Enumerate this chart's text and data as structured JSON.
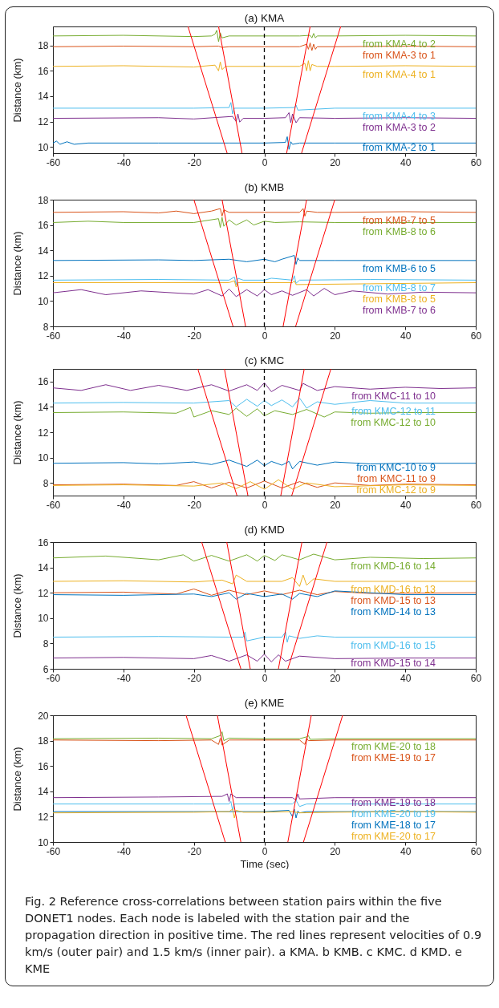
{
  "chart_data": [
    {
      "type": "line",
      "title": "(a) KMA",
      "ylabel": "Distance (km)",
      "xlim": [
        -60,
        60
      ],
      "xticks": [
        -60,
        -40,
        -20,
        0,
        20,
        40,
        60
      ],
      "ylim": [
        9.5,
        19.5
      ],
      "yticks": [
        10,
        12,
        14,
        16,
        18
      ],
      "ref_lines": [
        {
          "axis": "x",
          "value": 0,
          "line_style": "dashed",
          "color": "#000000"
        }
      ],
      "series": [
        {
          "name": "from KMA-4 to 2",
          "color": "#77ac30",
          "x": [
            -60,
            -40,
            -20,
            -15,
            -14,
            -13.5,
            -13,
            -12.5,
            -12,
            -10,
            0,
            10,
            13,
            13.5,
            14,
            14.5,
            15,
            20,
            40,
            60
          ],
          "values": [
            18.75,
            18.8,
            18.7,
            18.75,
            18.9,
            19.2,
            18.3,
            19.0,
            18.6,
            18.75,
            18.75,
            18.75,
            18.8,
            18.6,
            18.95,
            18.6,
            18.75,
            18.75,
            18.8,
            18.75
          ]
        },
        {
          "name": "from KMA-3 to 1",
          "color": "#d95319",
          "x": [
            -60,
            -40,
            -20,
            -13,
            -12,
            -10,
            0,
            10,
            12,
            12.5,
            13,
            13.5,
            14,
            14.5,
            15,
            20,
            40,
            60
          ],
          "values": [
            17.9,
            17.95,
            17.9,
            17.95,
            17.85,
            17.9,
            17.9,
            17.9,
            18.1,
            17.7,
            18.2,
            17.6,
            18.1,
            17.7,
            17.9,
            17.9,
            17.95,
            17.9
          ]
        },
        {
          "name": "from KMA-4 to 1",
          "color": "#edb120",
          "x": [
            -60,
            -40,
            -20,
            -14,
            -13,
            -12.5,
            -12,
            -11,
            0,
            10,
            11.5,
            12,
            12.5,
            13,
            13.5,
            15,
            20,
            40,
            60
          ],
          "values": [
            16.35,
            16.4,
            16.3,
            16.45,
            16.0,
            16.7,
            16.1,
            16.35,
            16.35,
            16.35,
            16.6,
            16.0,
            16.8,
            16.0,
            16.5,
            16.35,
            16.35,
            16.4,
            16.35
          ]
        },
        {
          "name": "from KMA-4 to 3",
          "color": "#4dbeee",
          "x": [
            -60,
            -20,
            -10,
            -9.5,
            -9,
            -8.5,
            0,
            8.5,
            9,
            9.5,
            20,
            60
          ],
          "values": [
            13.05,
            13.05,
            13.1,
            13.5,
            12.6,
            13.05,
            13.05,
            13.1,
            13.3,
            12.9,
            13.05,
            13.05
          ]
        },
        {
          "name": "from KMA-3 to 2",
          "color": "#7e2f8e",
          "x": [
            -60,
            -30,
            -20,
            -9,
            -8,
            -7.5,
            -7,
            -6,
            0,
            6,
            7,
            7.5,
            8,
            9,
            10,
            20,
            40,
            60
          ],
          "values": [
            12.25,
            12.3,
            12.2,
            12.4,
            12.0,
            12.6,
            11.95,
            12.25,
            12.25,
            12.3,
            12.7,
            11.9,
            12.6,
            11.9,
            12.3,
            12.25,
            12.3,
            12.25
          ]
        },
        {
          "name": "from KMA-2 to 1",
          "color": "#0072bd",
          "x": [
            -60,
            -59,
            -58,
            -56,
            -54,
            -50,
            -30,
            -10,
            0,
            6,
            6.5,
            7,
            7.5,
            8,
            10,
            20,
            40,
            60
          ],
          "values": [
            10.3,
            10.45,
            10.2,
            10.4,
            10.2,
            10.3,
            10.3,
            10.3,
            10.3,
            10.35,
            10.8,
            9.8,
            10.4,
            10.2,
            10.3,
            10.3,
            10.3,
            10.3
          ]
        },
        {
          "type": "line",
          "color": "#ff0000",
          "x": [
            -21.67,
            -10.56
          ],
          "values": [
            19.5,
            9.5
          ]
        },
        {
          "type": "line",
          "color": "#ff0000",
          "x": [
            -13,
            -6.33
          ],
          "values": [
            19.5,
            9.5
          ]
        },
        {
          "type": "line",
          "color": "#ff0000",
          "x": [
            6.33,
            13
          ],
          "values": [
            9.5,
            19.5
          ]
        },
        {
          "type": "line",
          "color": "#ff0000",
          "x": [
            10.56,
            21.67
          ],
          "values": [
            9.5,
            19.5
          ]
        }
      ]
    },
    {
      "type": "line",
      "title": "(b) KMB",
      "ylabel": "Distance (km)",
      "xlim": [
        -60,
        60
      ],
      "xticks": [
        -60,
        -40,
        -20,
        0,
        20,
        40,
        60
      ],
      "ylim": [
        8,
        18
      ],
      "yticks": [
        8,
        10,
        12,
        14,
        16,
        18
      ],
      "ref_lines": [
        {
          "axis": "x",
          "value": 0,
          "line_style": "dashed",
          "color": "#000000"
        }
      ],
      "series": [
        {
          "name": "from KMB-7 to 5",
          "color": "#d95319",
          "x": [
            -60,
            -40,
            -30,
            -25,
            -20,
            -15,
            -12.5,
            -12,
            -11.5,
            -10,
            0,
            10,
            11,
            11.5,
            12,
            15,
            20,
            40,
            60
          ],
          "values": [
            17.0,
            17.05,
            16.95,
            17.1,
            16.9,
            17.1,
            17.3,
            16.7,
            17.2,
            17.0,
            17.0,
            17.0,
            17.3,
            16.7,
            17.1,
            17.0,
            17.0,
            17.05,
            17.0
          ]
        },
        {
          "name": "from KMB-8 to 6",
          "color": "#77ac30",
          "x": [
            -60,
            -50,
            -40,
            -20,
            -13,
            -12.5,
            -12,
            -11.5,
            -10,
            -8,
            -5,
            -3,
            0,
            3,
            10,
            20,
            40,
            60
          ],
          "values": [
            16.2,
            16.3,
            16.2,
            16.2,
            16.5,
            15.8,
            16.6,
            15.9,
            16.4,
            16.0,
            16.4,
            16.0,
            16.3,
            16.2,
            16.25,
            16.2,
            16.2,
            16.2
          ]
        },
        {
          "name": "from KMB-6 to 5",
          "color": "#0072bd",
          "x": [
            -60,
            -30,
            -20,
            -10,
            -5,
            0,
            3,
            5,
            8.5,
            9,
            9.5,
            10,
            20,
            40,
            60
          ],
          "values": [
            13.2,
            13.25,
            13.2,
            13.3,
            13.1,
            13.3,
            13.1,
            13.3,
            13.6,
            12.9,
            13.4,
            13.2,
            13.2,
            13.2,
            13.2
          ]
        },
        {
          "name": "from KMB-8 to 7",
          "color": "#4dbeee",
          "x": [
            -60,
            -30,
            -10,
            -8.5,
            -8,
            -7.5,
            -6,
            0,
            2,
            8,
            8.5,
            9,
            10,
            30,
            60
          ],
          "values": [
            11.65,
            11.7,
            11.65,
            11.9,
            11.3,
            11.8,
            11.65,
            11.65,
            11.8,
            11.65,
            12.0,
            11.4,
            11.65,
            11.7,
            11.65
          ]
        },
        {
          "name": "from KMB-8 to 5",
          "color": "#edb120",
          "x": [
            -60,
            -10,
            -8.5,
            -8,
            -7.5,
            0,
            8,
            8.5,
            9,
            60
          ],
          "values": [
            11.45,
            11.45,
            11.6,
            11.1,
            11.45,
            11.45,
            11.45,
            11.6,
            11.3,
            11.45
          ]
        },
        {
          "name": "from KMB-7 to 6",
          "color": "#7e2f8e",
          "x": [
            -60,
            -52,
            -45,
            -35,
            -20,
            -16,
            -12,
            -10,
            -8,
            -5,
            -2,
            0,
            2,
            5,
            8,
            12,
            14,
            17,
            20,
            25,
            35,
            45,
            60
          ],
          "values": [
            10.65,
            10.9,
            10.5,
            10.8,
            10.55,
            10.9,
            10.4,
            10.95,
            10.35,
            10.9,
            10.4,
            10.9,
            10.5,
            10.8,
            10.45,
            10.9,
            10.4,
            11.0,
            10.5,
            10.8,
            10.55,
            10.7,
            10.65
          ]
        },
        {
          "type": "line",
          "color": "#ff0000",
          "x": [
            -20,
            -8.89
          ],
          "values": [
            18,
            8
          ]
        },
        {
          "type": "line",
          "color": "#ff0000",
          "x": [
            -12,
            -5.33
          ],
          "values": [
            18,
            8
          ]
        },
        {
          "type": "line",
          "color": "#ff0000",
          "x": [
            5.33,
            12
          ],
          "values": [
            8,
            18
          ]
        },
        {
          "type": "line",
          "color": "#ff0000",
          "x": [
            8.89,
            20
          ],
          "values": [
            8,
            18
          ]
        }
      ]
    },
    {
      "type": "line",
      "title": "(c) KMC",
      "ylabel": "Distance (km)",
      "xlim": [
        -60,
        60
      ],
      "xticks": [
        -60,
        -40,
        -20,
        0,
        20,
        40,
        60
      ],
      "ylim": [
        7,
        17
      ],
      "yticks": [
        8,
        10,
        12,
        14,
        16
      ],
      "ref_lines": [
        {
          "axis": "x",
          "value": 0,
          "line_style": "dashed",
          "color": "#000000"
        }
      ],
      "series": [
        {
          "name": "from KMC-11 to 10",
          "color": "#7e2f8e",
          "x": [
            -60,
            -52,
            -45,
            -38,
            -30,
            -22,
            -15,
            -10,
            -5,
            -2,
            0,
            2,
            5,
            10,
            11,
            15,
            20,
            30,
            40,
            50,
            60
          ],
          "values": [
            15.5,
            15.3,
            15.75,
            15.3,
            15.7,
            15.3,
            15.75,
            15.25,
            15.75,
            15.3,
            15.9,
            15.2,
            15.7,
            15.3,
            15.85,
            15.3,
            15.6,
            15.4,
            15.55,
            15.45,
            15.5
          ]
        },
        {
          "name": "from KMC-12 to 11",
          "color": "#4dbeee",
          "x": [
            -60,
            -40,
            -20,
            -10,
            -8,
            -5,
            -2,
            0,
            2,
            5,
            8,
            10,
            12,
            15,
            20,
            30,
            40,
            60
          ],
          "values": [
            14.3,
            14.35,
            14.3,
            14.5,
            14.0,
            14.6,
            14.05,
            14.5,
            14.1,
            14.55,
            14.0,
            14.7,
            13.9,
            14.4,
            14.2,
            14.5,
            14.3,
            14.3
          ]
        },
        {
          "name": "from KMC-12 to 10",
          "color": "#77ac30",
          "x": [
            -60,
            -40,
            -25,
            -21,
            -20,
            -15,
            -10,
            -8,
            -5,
            -2,
            0,
            3,
            8,
            12,
            17,
            20,
            30,
            40,
            60
          ],
          "values": [
            13.55,
            13.6,
            13.5,
            13.95,
            13.2,
            13.7,
            13.4,
            13.9,
            13.25,
            13.85,
            13.3,
            13.7,
            13.4,
            13.8,
            13.2,
            13.6,
            13.5,
            13.55,
            13.55
          ]
        },
        {
          "name": "from KMC-10 to 9",
          "color": "#0072bd",
          "x": [
            -60,
            -40,
            -30,
            -20,
            -15,
            -10,
            -5,
            -2,
            0,
            2,
            5,
            7,
            8,
            10,
            15,
            20,
            30,
            40,
            60
          ],
          "values": [
            9.55,
            9.6,
            9.5,
            9.65,
            9.45,
            9.8,
            9.3,
            9.8,
            9.35,
            9.7,
            9.4,
            9.7,
            9.1,
            9.7,
            9.4,
            9.65,
            9.5,
            9.55,
            9.55
          ]
        },
        {
          "name": "from KMC-11 to 9",
          "color": "#d95319",
          "x": [
            -60,
            -40,
            -25,
            -20,
            -15,
            -10,
            -5,
            0,
            5,
            10,
            15,
            20,
            30,
            40,
            60
          ],
          "values": [
            7.85,
            7.9,
            7.8,
            8.1,
            7.6,
            8.05,
            7.6,
            8.15,
            7.6,
            8.1,
            7.65,
            8.0,
            7.8,
            7.9,
            7.85
          ]
        },
        {
          "name": "from KMC-12 to 9",
          "color": "#edb120",
          "x": [
            -60,
            -40,
            -20,
            -12,
            -8,
            -4,
            0,
            4,
            8,
            12,
            20,
            40,
            60
          ],
          "values": [
            7.8,
            7.85,
            7.75,
            8.0,
            7.55,
            8.1,
            7.5,
            8.25,
            7.5,
            8.0,
            7.7,
            7.85,
            7.8
          ]
        },
        {
          "type": "line",
          "color": "#ff0000",
          "x": [
            -18.89,
            -7.78
          ],
          "values": [
            17,
            7
          ]
        },
        {
          "type": "line",
          "color": "#ff0000",
          "x": [
            -11.33,
            -4.67
          ],
          "values": [
            17,
            7
          ]
        },
        {
          "type": "line",
          "color": "#ff0000",
          "x": [
            4.67,
            11.33
          ],
          "values": [
            7,
            17
          ]
        },
        {
          "type": "line",
          "color": "#ff0000",
          "x": [
            7.78,
            18.89
          ],
          "values": [
            7,
            17
          ]
        }
      ]
    },
    {
      "type": "line",
      "title": "(d) KMD",
      "ylabel": "Distance (km)",
      "xlim": [
        -60,
        60
      ],
      "xticks": [
        -60,
        -40,
        -20,
        0,
        20,
        40,
        60
      ],
      "ylim": [
        6,
        16
      ],
      "yticks": [
        6,
        8,
        10,
        12,
        14,
        16
      ],
      "ref_lines": [
        {
          "axis": "x",
          "value": 0,
          "line_style": "dashed",
          "color": "#000000"
        }
      ],
      "series": [
        {
          "name": "from KMD-16 to 14",
          "color": "#77ac30",
          "x": [
            -60,
            -45,
            -30,
            -23,
            -20,
            -15,
            -10,
            -5,
            -2,
            0,
            3,
            5,
            10,
            14,
            20,
            30,
            45,
            60
          ],
          "values": [
            14.75,
            14.9,
            14.6,
            15.0,
            14.5,
            14.95,
            14.5,
            15.0,
            14.5,
            14.95,
            14.55,
            15.0,
            14.6,
            15.05,
            14.6,
            14.8,
            14.7,
            14.75
          ]
        },
        {
          "name": "from KMD-16 to 13",
          "color": "#edb120",
          "x": [
            -60,
            -40,
            -20,
            -12,
            -9,
            -8,
            -5,
            0,
            5,
            8,
            10,
            11,
            12,
            14,
            20,
            40,
            60
          ],
          "values": [
            12.9,
            12.95,
            12.85,
            13.0,
            12.7,
            13.4,
            12.9,
            12.9,
            12.9,
            13.2,
            12.5,
            13.4,
            12.6,
            13.1,
            12.9,
            12.9,
            12.9
          ]
        },
        {
          "name": "from KMD-15 to 13",
          "color": "#d95319",
          "x": [
            -60,
            -40,
            -25,
            -20,
            -15,
            -10,
            -5,
            0,
            5,
            10,
            15,
            20,
            30,
            60
          ],
          "values": [
            12.0,
            12.05,
            11.9,
            12.3,
            11.8,
            12.2,
            11.85,
            12.15,
            11.85,
            12.2,
            11.85,
            12.1,
            11.95,
            12.0
          ]
        },
        {
          "name": "from KMD-14 to 13",
          "color": "#0072bd",
          "x": [
            -60,
            -40,
            -20,
            -15,
            -10,
            -8,
            -5,
            0,
            5,
            8,
            10,
            15,
            20,
            40,
            60
          ],
          "values": [
            11.85,
            11.8,
            11.9,
            11.7,
            12.0,
            11.5,
            11.95,
            11.7,
            11.9,
            11.5,
            11.95,
            11.7,
            12.15,
            11.85,
            11.85
          ]
        },
        {
          "name": "from KMD-16 to 15",
          "color": "#4dbeee",
          "x": [
            -60,
            -30,
            -10,
            -6,
            -5.5,
            -5,
            0,
            5,
            6,
            6.5,
            7,
            10,
            15,
            20,
            60
          ],
          "values": [
            8.5,
            8.55,
            8.5,
            8.5,
            8.9,
            8.2,
            8.5,
            8.5,
            8.9,
            8.1,
            8.6,
            8.4,
            8.6,
            8.5,
            8.5
          ]
        },
        {
          "name": "from KMD-15 to 14",
          "color": "#7e2f8e",
          "x": [
            -60,
            -40,
            -20,
            -15,
            -10,
            -5,
            -2,
            0,
            2,
            4,
            6,
            10,
            20,
            40,
            60
          ],
          "values": [
            6.85,
            6.9,
            6.8,
            7.05,
            6.6,
            7.1,
            6.6,
            7.15,
            6.55,
            7.1,
            6.6,
            7.0,
            6.8,
            6.85,
            6.85
          ]
        },
        {
          "type": "line",
          "color": "#ff0000",
          "x": [
            -17.78,
            -6.67
          ],
          "values": [
            16,
            6
          ]
        },
        {
          "type": "line",
          "color": "#ff0000",
          "x": [
            -10.67,
            -4
          ],
          "values": [
            16,
            6
          ]
        },
        {
          "type": "line",
          "color": "#ff0000",
          "x": [
            4,
            10.67
          ],
          "values": [
            6,
            16
          ]
        },
        {
          "type": "line",
          "color": "#ff0000",
          "x": [
            6.67,
            17.78
          ],
          "values": [
            6,
            16
          ]
        }
      ]
    },
    {
      "type": "line",
      "title": "(e) KME",
      "xlabel": "Time (sec)",
      "ylabel": "Distance (km)",
      "xlim": [
        -60,
        60
      ],
      "xticks": [
        -60,
        -40,
        -20,
        0,
        20,
        40,
        60
      ],
      "ylim": [
        10,
        20
      ],
      "yticks": [
        10,
        12,
        14,
        16,
        18,
        20
      ],
      "ref_lines": [
        {
          "axis": "x",
          "value": 0,
          "line_style": "dashed",
          "color": "#000000"
        }
      ],
      "annotations": [
        "Fig. 2 Reference cross-correlations between station pairs within the five DONET1 nodes. Each node is labeled with the station pair and the propagation direction in positive time. The red lines represent velocities of 0.9 km/s (outer pair) and 1.5 km/s (inner pair). a KMA. b KMB. c KMC. d KMD. e KME"
      ],
      "series": [
        {
          "name": "from KME-20 to 18",
          "color": "#77ac30",
          "x": [
            -60,
            -30,
            -15,
            -12.5,
            -12,
            -11.5,
            -10,
            0,
            10,
            12,
            12.5,
            13,
            20,
            60
          ],
          "values": [
            18.15,
            18.2,
            18.15,
            18.4,
            18.7,
            18.0,
            18.2,
            18.15,
            18.15,
            18.3,
            18.4,
            18.1,
            18.15,
            18.15
          ]
        },
        {
          "name": "from KME-19 to 17",
          "color": "#d95319",
          "x": [
            -60,
            -30,
            -15,
            -13,
            -12.5,
            -12,
            -10,
            0,
            10,
            11.5,
            12,
            12.5,
            20,
            60
          ],
          "values": [
            18.05,
            18.0,
            18.05,
            17.7,
            18.2,
            17.65,
            18.05,
            18.05,
            18.05,
            17.7,
            18.2,
            18.0,
            18.05,
            18.05
          ]
        },
        {
          "name": "from KME-19 to 18",
          "color": "#7e2f8e",
          "x": [
            -60,
            -30,
            -12,
            -10.5,
            -10,
            -9.5,
            -8,
            0,
            8,
            9,
            9.5,
            10,
            20,
            40,
            60
          ],
          "values": [
            13.5,
            13.55,
            13.6,
            13.8,
            13.2,
            13.8,
            13.5,
            13.5,
            13.5,
            13.3,
            13.8,
            13.4,
            13.5,
            13.5,
            13.5
          ]
        },
        {
          "name": "from KME-20 to 19",
          "color": "#4dbeee",
          "x": [
            -60,
            -20,
            -10,
            -9.5,
            -9,
            -8.5,
            0,
            8,
            9,
            10,
            12,
            60
          ],
          "values": [
            13.0,
            13.0,
            13.0,
            13.2,
            12.5,
            13.0,
            13.0,
            13.0,
            13.3,
            12.8,
            13.0,
            13.0
          ]
        },
        {
          "name": "from KME-18 to 17",
          "color": "#0072bd",
          "x": [
            -60,
            -20,
            -10,
            0,
            7,
            8,
            8.5,
            9,
            9.5,
            10,
            12,
            60
          ],
          "values": [
            12.4,
            12.4,
            12.4,
            12.4,
            12.5,
            12.0,
            12.6,
            11.9,
            12.45,
            12.3,
            12.4,
            12.4
          ]
        },
        {
          "name": "from KME-20 to 17",
          "color": "#edb120",
          "x": [
            -60,
            -20,
            -10,
            -9,
            -8.5,
            -8,
            -6,
            0,
            8,
            10,
            20,
            40,
            60
          ],
          "values": [
            12.3,
            12.35,
            12.4,
            12.6,
            11.9,
            12.5,
            12.35,
            12.35,
            12.4,
            12.3,
            12.35,
            12.4,
            12.35
          ]
        },
        {
          "type": "line",
          "color": "#ff0000",
          "x": [
            -22.22,
            -11.11
          ],
          "values": [
            20,
            10
          ]
        },
        {
          "type": "line",
          "color": "#ff0000",
          "x": [
            -13.33,
            -6.67
          ],
          "values": [
            20,
            10
          ]
        },
        {
          "type": "line",
          "color": "#ff0000",
          "x": [
            6.67,
            13.33
          ],
          "values": [
            10,
            20
          ]
        },
        {
          "type": "line",
          "color": "#ff0000",
          "x": [
            11.11,
            22.22
          ],
          "values": [
            10,
            20
          ]
        }
      ]
    }
  ]
}
